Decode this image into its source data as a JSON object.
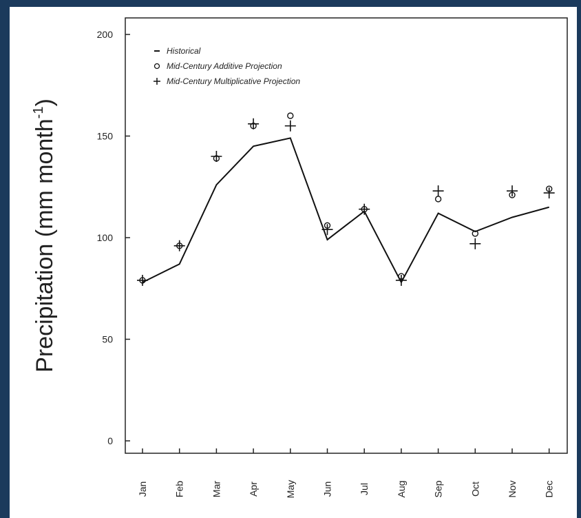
{
  "chart_data": {
    "type": "line",
    "xlabel": "",
    "ylabel": "Precipitation (mm month",
    "ylabel_superscript": "-1",
    "ylabel_close": ")",
    "categories": [
      "Jan",
      "Feb",
      "Mar",
      "Apr",
      "May",
      "Jun",
      "Jul",
      "Aug",
      "Sep",
      "Oct",
      "Nov",
      "Dec"
    ],
    "yticks": [
      "0",
      "50",
      "100",
      "150",
      "200"
    ],
    "ylim": [
      0,
      205
    ],
    "grid": false,
    "legend_position": "top-left",
    "series": [
      {
        "name": "Historical",
        "marker": "line",
        "color": "#111111",
        "values": [
          78,
          87,
          126,
          145,
          149,
          99,
          113,
          78,
          112,
          103,
          110,
          115
        ]
      },
      {
        "name": "Mid-Century Additive Projection",
        "marker": "circle",
        "color": "#111111",
        "values": [
          79,
          96,
          139,
          155,
          160,
          106,
          114,
          81,
          119,
          102,
          121,
          124
        ]
      },
      {
        "name": "Mid-Century Multiplicative Projection",
        "marker": "plus",
        "color": "#111111",
        "values": [
          79,
          96,
          140,
          156,
          155,
          104,
          114,
          79,
          123,
          97,
          123,
          122
        ]
      }
    ]
  }
}
